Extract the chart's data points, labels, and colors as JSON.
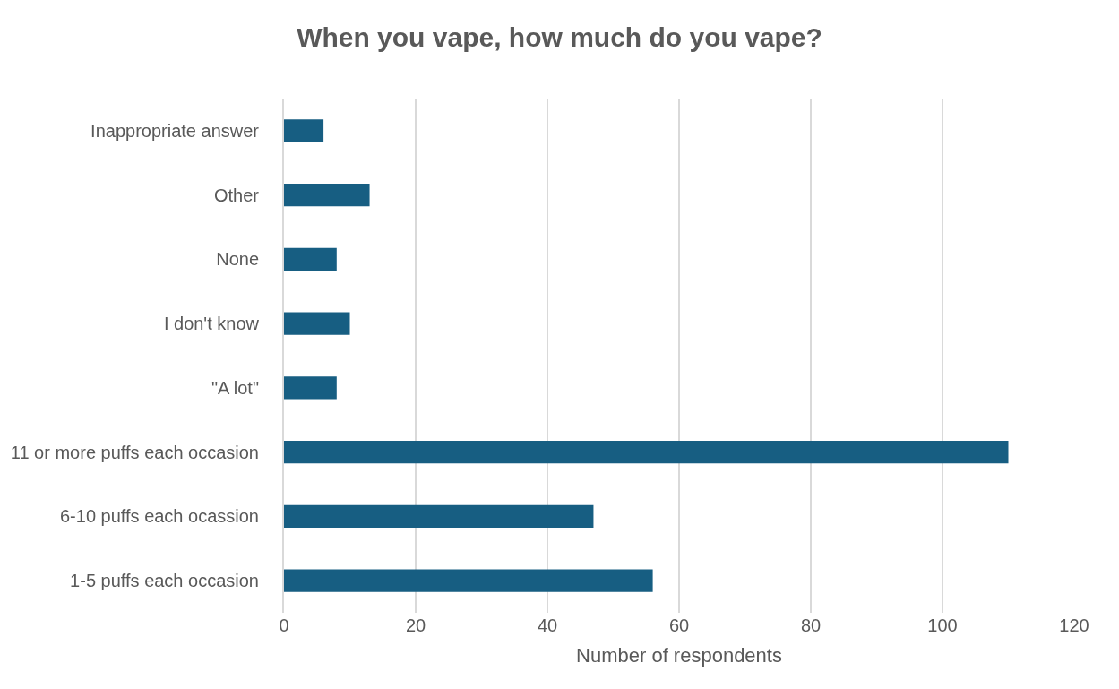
{
  "chart_data": {
    "type": "bar",
    "orientation": "horizontal",
    "title": "When you vape, how much do you vape?",
    "xlabel": "Number of respondents",
    "categories": [
      "Inappropriate answer",
      "Other",
      "None",
      "I don't know",
      "\"A lot\"",
      "11 or more puffs each occasion",
      "6-10 puffs each ocassion",
      "1-5 puffs each occasion"
    ],
    "values": [
      6,
      13,
      8,
      10,
      8,
      110,
      47,
      56
    ],
    "color": "#175e82",
    "xlim": [
      0,
      120
    ],
    "xticks": [
      0,
      20,
      40,
      60,
      80,
      100,
      120
    ],
    "grid": "x",
    "legend": false
  }
}
